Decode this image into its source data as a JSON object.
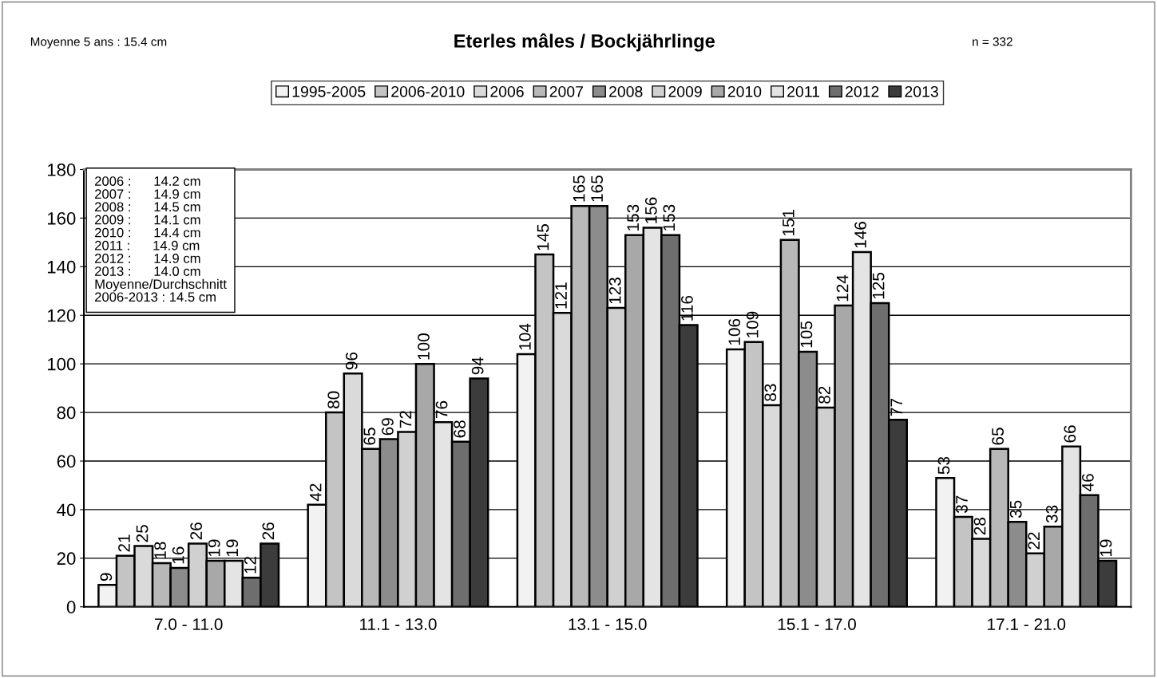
{
  "chart_data": {
    "type": "bar",
    "title": "Eterles mâles / Bockjährlinge",
    "categories": [
      "7.0 - 11.0",
      "11.1 - 13.0",
      "13.1 - 15.0",
      "15.1 - 17.0",
      "17.1 - 21.0"
    ],
    "series": [
      {
        "name": "1995-2005",
        "color": "#f2f2f2",
        "values": [
          9,
          42,
          104,
          106,
          53
        ]
      },
      {
        "name": "2006-2010",
        "color": "#c4c4c4",
        "values": [
          21,
          80,
          145,
          109,
          37
        ]
      },
      {
        "name": "2006",
        "color": "#dadada",
        "values": [
          25,
          96,
          121,
          83,
          28
        ]
      },
      {
        "name": "2007",
        "color": "#b8b8b8",
        "values": [
          18,
          65,
          165,
          151,
          65
        ]
      },
      {
        "name": "2008",
        "color": "#8c8c8c",
        "values": [
          16,
          69,
          165,
          105,
          35
        ]
      },
      {
        "name": "2009",
        "color": "#d0d0d0",
        "values": [
          26,
          72,
          123,
          82,
          22
        ]
      },
      {
        "name": "2010",
        "color": "#a8a8a8",
        "values": [
          19,
          100,
          153,
          124,
          33
        ]
      },
      {
        "name": "2011",
        "color": "#e4e4e4",
        "values": [
          19,
          76,
          156,
          146,
          66
        ]
      },
      {
        "name": "2012",
        "color": "#6e6e6e",
        "values": [
          12,
          68,
          153,
          125,
          46
        ]
      },
      {
        "name": "2013",
        "color": "#3c3c3c",
        "values": [
          26,
          94,
          116,
          77,
          19
        ]
      }
    ],
    "ylim": [
      0,
      180
    ],
    "yticks": [
      0,
      20,
      40,
      60,
      80,
      100,
      120,
      140,
      160,
      180
    ],
    "grid": "y",
    "legend": "top",
    "data_labels": true,
    "annotations": [
      "Moyenne 5 ans : 15.4 cm",
      "n = 332",
      "2006 :      14.2 cm",
      "2007 :      14.9 cm",
      "2008 :      14.5 cm",
      "2009 :      14.1 cm",
      "2010 :      14.4 cm",
      "2011 :      14.9 cm",
      "2012 :      14.9 cm",
      "2013 :      14.0 cm",
      "Moyenne/Durchschnitt",
      "2006-2013 : 14.5 cm"
    ]
  }
}
